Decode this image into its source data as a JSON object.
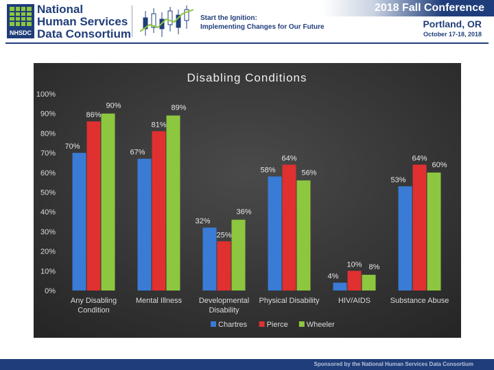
{
  "header": {
    "org_line1": "National",
    "org_line2": "Human Services",
    "org_line3": "Data Consortium",
    "logo_abbrev": "NHSDC",
    "tagline_line1": "Start the Ignition:",
    "tagline_line2": "Implementing Changes for Our Future",
    "conference_title": "2018 Fall Conference",
    "conference_city": "Portland, OR",
    "conference_dates": "October 17-18, 2018"
  },
  "footer": {
    "sponsor_text": "Sponsored by the National Human Services Data Consortium"
  },
  "colors": {
    "brand": "#1f3d7a",
    "chart_bg": "#3a3a3a",
    "series_chartres": "#3a7bd5",
    "series_pierce": "#e03030",
    "series_wheeler": "#8dc63f"
  },
  "chart_data": {
    "type": "bar",
    "title": "Disabling Conditions",
    "xlabel": "",
    "ylabel": "",
    "ylim": [
      0,
      100
    ],
    "yticks": [
      "0%",
      "10%",
      "20%",
      "30%",
      "40%",
      "50%",
      "60%",
      "70%",
      "80%",
      "90%",
      "100%"
    ],
    "grid": false,
    "legend_position": "bottom",
    "categories": [
      [
        "Any Disabling",
        "Condition"
      ],
      [
        "Mental Illness"
      ],
      [
        "Developmental",
        "Disability"
      ],
      [
        "Physical Disability"
      ],
      [
        "HIV/AIDS"
      ],
      [
        "Substance Abuse"
      ]
    ],
    "series": [
      {
        "name": "Chartres",
        "values": [
          70,
          67,
          32,
          58,
          4,
          53
        ],
        "labels": [
          "70%",
          "67%",
          "32%",
          "58%",
          "4%",
          "53%"
        ]
      },
      {
        "name": "Pierce",
        "values": [
          86,
          81,
          25,
          64,
          10,
          64
        ],
        "labels": [
          "86%",
          "81%",
          "25%",
          "64%",
          "10%",
          "64%"
        ]
      },
      {
        "name": "Wheeler",
        "values": [
          90,
          89,
          36,
          56,
          8,
          60
        ],
        "labels": [
          "90%",
          "89%",
          "36%",
          "56%",
          "8%",
          "60%"
        ]
      }
    ]
  }
}
